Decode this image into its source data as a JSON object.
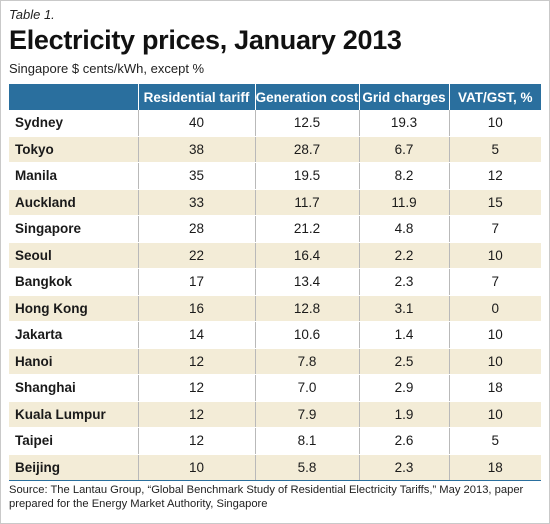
{
  "kicker": "Table 1.",
  "title": "Electricity prices, January 2013",
  "subtitle": "Singapore $ cents/kWh, except %",
  "table": {
    "columns": [
      "",
      "Residential tariff",
      "Generation cost",
      "Grid charges",
      "VAT/GST, %"
    ],
    "rows": [
      [
        "Sydney",
        "40",
        "12.5",
        "19.3",
        "10"
      ],
      [
        "Tokyo",
        "38",
        "28.7",
        "6.7",
        "5"
      ],
      [
        "Manila",
        "35",
        "19.5",
        "8.2",
        "12"
      ],
      [
        "Auckland",
        "33",
        "11.7",
        "11.9",
        "15"
      ],
      [
        "Singapore",
        "28",
        "21.2",
        "4.8",
        "7"
      ],
      [
        "Seoul",
        "22",
        "16.4",
        "2.2",
        "10"
      ],
      [
        "Bangkok",
        "17",
        "13.4",
        "2.3",
        "7"
      ],
      [
        "Hong Kong",
        "16",
        "12.8",
        "3.1",
        "0"
      ],
      [
        "Jakarta",
        "14",
        "10.6",
        "1.4",
        "10"
      ],
      [
        "Hanoi",
        "12",
        "7.8",
        "2.5",
        "10"
      ],
      [
        "Shanghai",
        "12",
        "7.0",
        "2.9",
        "18"
      ],
      [
        "Kuala Lumpur",
        "12",
        "7.9",
        "1.9",
        "10"
      ],
      [
        "Taipei",
        "12",
        "8.1",
        "2.6",
        "5"
      ],
      [
        "Beijing",
        "10",
        "5.8",
        "2.3",
        "18"
      ]
    ]
  },
  "source": "Source: The Lantau Group, “Global Benchmark Study of Residential Electricity Tariffs,” May 2013, paper prepared for the Energy Market Authority, Singapore",
  "colors": {
    "header_bg": "#2a6f9e",
    "stripe_bg": "#f3ecd7"
  }
}
